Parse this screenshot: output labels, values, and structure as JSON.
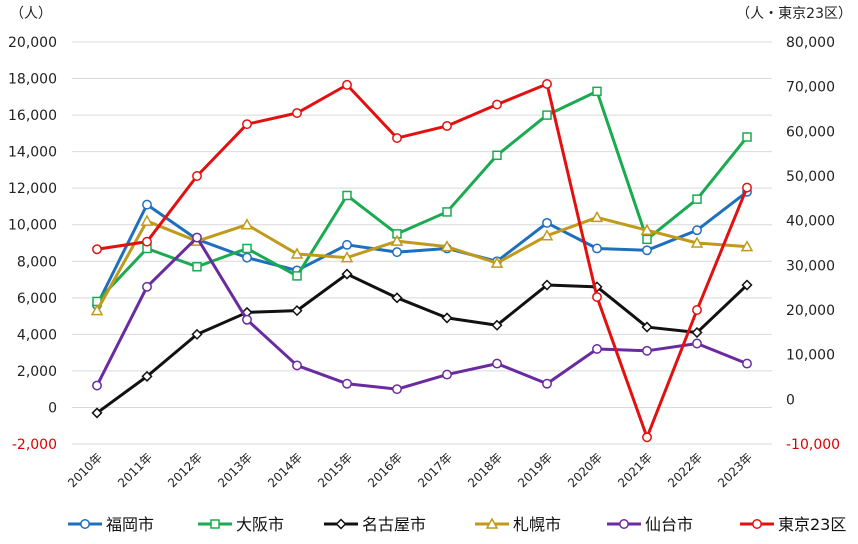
{
  "chart_data": {
    "type": "line",
    "left_axis": {
      "unit_label": "（人）",
      "ylim": [
        -2000,
        20000
      ],
      "ticks": [
        -2000,
        0,
        2000,
        4000,
        6000,
        8000,
        10000,
        12000,
        14000,
        16000,
        18000,
        20000
      ],
      "tick_labels": [
        "-2,000",
        "0",
        "2,000",
        "4,000",
        "6,000",
        "8,000",
        "10,000",
        "12,000",
        "14,000",
        "16,000",
        "18,000",
        "20,000"
      ]
    },
    "right_axis": {
      "unit_label": "（人・東京23区）",
      "ylim": [
        -10000,
        80000
      ],
      "ticks": [
        -10000,
        0,
        10000,
        20000,
        30000,
        40000,
        50000,
        60000,
        70000,
        80000
      ],
      "tick_labels": [
        "-10,000",
        "0",
        "10,000",
        "20,000",
        "30,000",
        "40,000",
        "50,000",
        "60,000",
        "70,000",
        "80,000"
      ]
    },
    "categories": [
      "2010年",
      "2011年",
      "2012年",
      "2013年",
      "2014年",
      "2015年",
      "2016年",
      "2017年",
      "2018年",
      "2019年",
      "2020年",
      "2021年",
      "2022年",
      "2023年"
    ],
    "grid": true,
    "legend_position": "bottom",
    "series": [
      {
        "name": "福岡市",
        "axis": "left",
        "color": "#1f6fbf",
        "marker": "circle",
        "values": [
          5600,
          11100,
          9200,
          8200,
          7500,
          8900,
          8500,
          8700,
          8000,
          10100,
          8700,
          8600,
          9700,
          11800
        ]
      },
      {
        "name": "大阪市",
        "axis": "left",
        "color": "#1aaa50",
        "marker": "square",
        "values": [
          5800,
          8700,
          7700,
          8700,
          7200,
          11600,
          9500,
          10700,
          13800,
          16000,
          17300,
          9200,
          11400,
          14800
        ]
      },
      {
        "name": "名古屋市",
        "axis": "left",
        "color": "#111111",
        "marker": "diamond",
        "values": [
          -300,
          1700,
          4000,
          5200,
          5300,
          7300,
          6000,
          4900,
          4500,
          6700,
          6600,
          4400,
          4100,
          6700
        ]
      },
      {
        "name": "札幌市",
        "axis": "left",
        "color": "#c09a1a",
        "marker": "triangle",
        "values": [
          5300,
          10200,
          9100,
          10000,
          8400,
          8200,
          9100,
          8800,
          7900,
          9400,
          10400,
          9700,
          9000,
          8800
        ]
      },
      {
        "name": "仙台市",
        "axis": "left",
        "color": "#6a2aa0",
        "marker": "circle",
        "values": [
          1200,
          6600,
          9300,
          4800,
          2300,
          1300,
          1000,
          1800,
          2400,
          1300,
          3200,
          3100,
          3500,
          2400
        ]
      },
      {
        "name": "東京23区",
        "axis": "right",
        "color": "#e31010",
        "marker": "circle",
        "values": [
          33600,
          35300,
          50000,
          61600,
          64100,
          70400,
          58500,
          61200,
          66000,
          70600,
          22900,
          -8500,
          20000,
          47400
        ]
      }
    ]
  }
}
